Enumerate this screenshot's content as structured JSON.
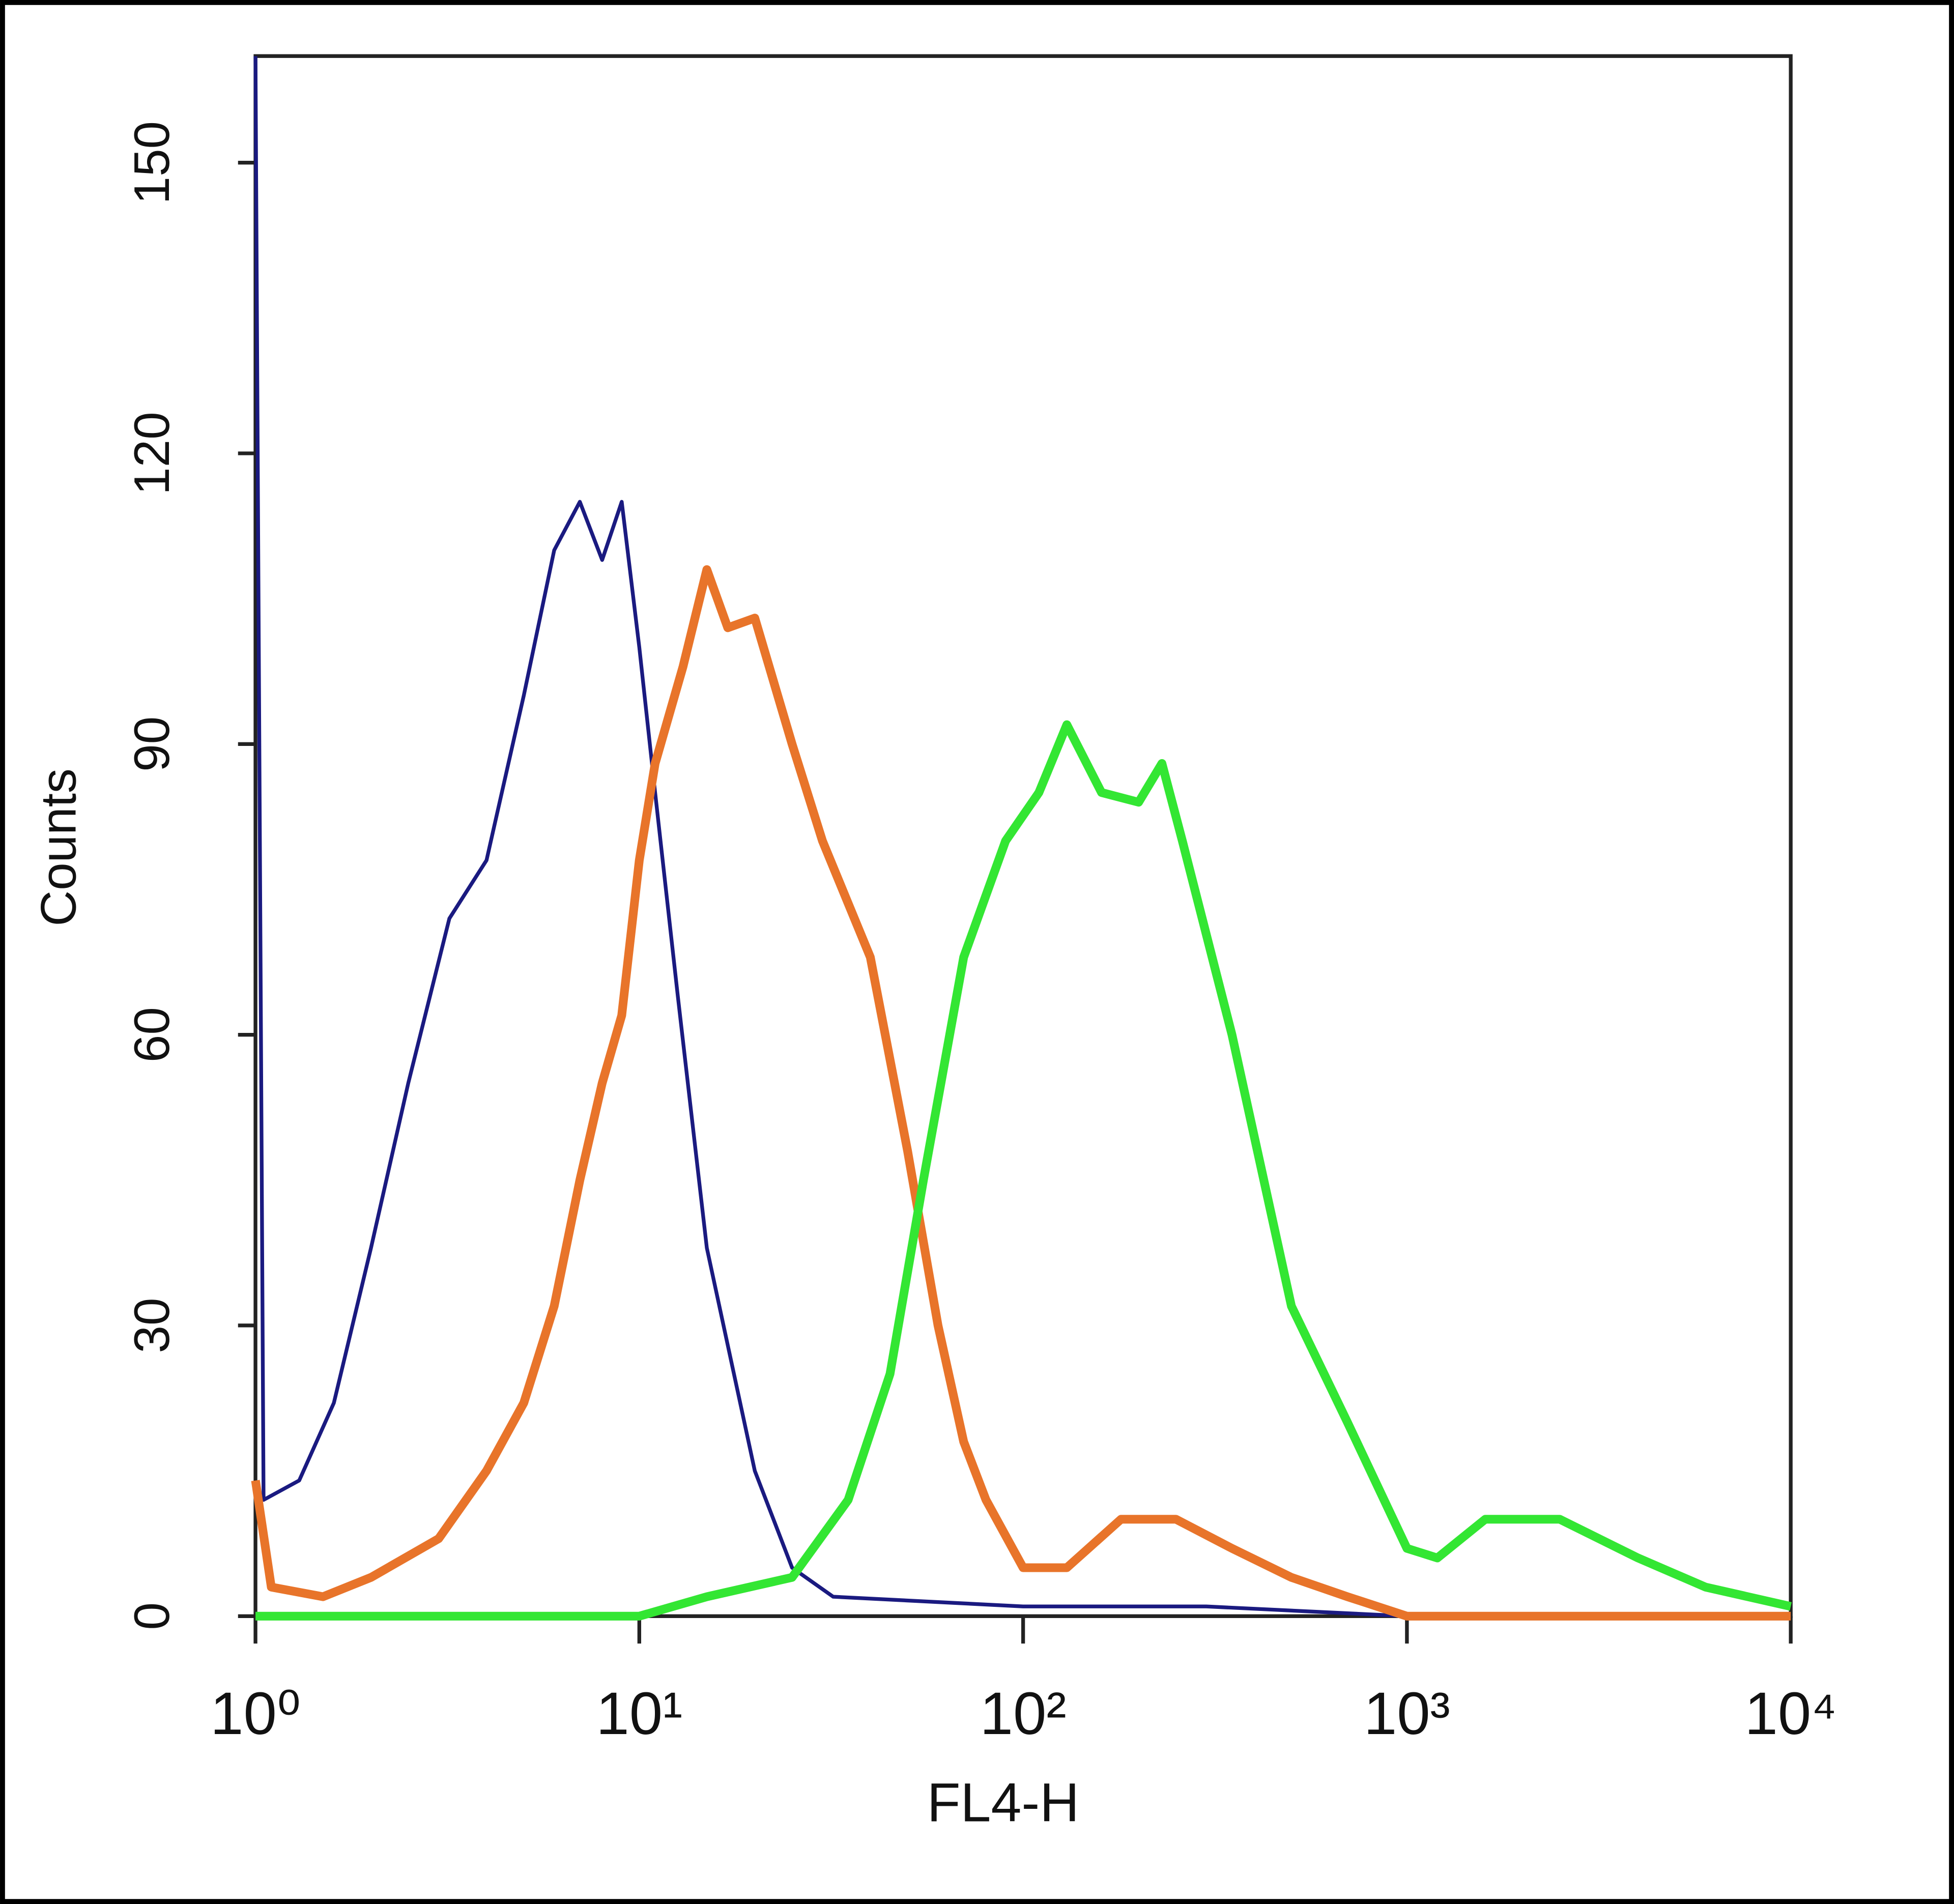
{
  "chart_data": {
    "type": "line",
    "x_label": "FL4-H",
    "y_label": "Counts",
    "xscale": "log",
    "xlim": [
      1,
      10000
    ],
    "ylim": [
      0,
      161
    ],
    "xticks": [
      {
        "value": 1,
        "label": "10⁰"
      },
      {
        "value": 10,
        "label": "10¹"
      },
      {
        "value": 100,
        "label": "10²"
      },
      {
        "value": 1000,
        "label": "10³"
      },
      {
        "value": 10000,
        "label": "10⁴"
      }
    ],
    "yticks": [
      0,
      30,
      60,
      90,
      120,
      150
    ],
    "series": [
      {
        "color": "#1a1a80",
        "x": [
          1,
          1.05,
          1.3,
          1.6,
          2,
          2.5,
          3.2,
          4,
          5,
          6,
          7,
          8,
          9,
          10,
          11,
          12.6,
          15,
          20,
          25,
          32,
          100,
          300,
          1000,
          10000
        ],
        "values": [
          161,
          12,
          14,
          22,
          38,
          55,
          72,
          78,
          95,
          110,
          115,
          109,
          115,
          100,
          85,
          64,
          38,
          15,
          5,
          2,
          1,
          1,
          0,
          0
        ]
      },
      {
        "color": "#e8742a",
        "x": [
          1,
          1.1,
          1.5,
          2,
          3,
          4,
          5,
          6,
          7,
          8,
          9,
          10,
          11,
          13,
          15,
          17,
          20,
          25,
          30,
          40,
          50,
          60,
          70,
          80,
          100,
          130,
          180,
          250,
          350,
          500,
          700,
          1000,
          10000
        ],
        "values": [
          14,
          3,
          2,
          4,
          8,
          15,
          22,
          32,
          45,
          55,
          62,
          78,
          88,
          98,
          108,
          102,
          103,
          90,
          80,
          68,
          48,
          30,
          18,
          12,
          5,
          5,
          10,
          10,
          7,
          4,
          2,
          0,
          0
        ]
      },
      {
        "color": "#33e633",
        "x": [
          1,
          10,
          15,
          25,
          35,
          45,
          55,
          70,
          90,
          110,
          130,
          160,
          200,
          230,
          260,
          350,
          500,
          700,
          1000,
          1200,
          1600,
          2500,
          4000,
          6000,
          10000
        ],
        "values": [
          0,
          0,
          2,
          4,
          12,
          25,
          45,
          68,
          80,
          85,
          92,
          85,
          84,
          88,
          80,
          60,
          32,
          20,
          7,
          6,
          10,
          10,
          6,
          3,
          1
        ]
      }
    ]
  }
}
